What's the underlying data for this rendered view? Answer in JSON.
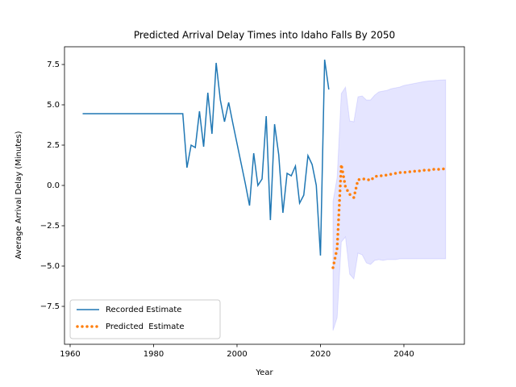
{
  "chart_data": {
    "type": "line",
    "title": "Predicted Arrival Delay Times into Idaho Falls By 2050",
    "x_label": "Year",
    "y_label": "Average Arrival Delay (Minutes)",
    "xlim": [
      1958.65,
      2054.5
    ],
    "ylim": [
      -9.85,
      8.6
    ],
    "xticks": [
      1960,
      1980,
      2000,
      2020,
      2040
    ],
    "yticks": [
      {
        "value": -7.5,
        "label": "−7.5"
      },
      {
        "value": -5,
        "label": "−5.0"
      },
      {
        "value": -2.5,
        "label": "−2.5"
      },
      {
        "value": 0,
        "label": "0.0"
      },
      2.5,
      {
        "value": 5,
        "label": "5.0"
      },
      7.5
    ],
    "legend": "lower left",
    "series": [
      {
        "name": "Recorded Estimate",
        "color": "#1f77b4",
        "style": "solid",
        "x": [
          1963,
          1964,
          1965,
          1966,
          1967,
          1968,
          1969,
          1970,
          1971,
          1972,
          1973,
          1974,
          1975,
          1976,
          1977,
          1978,
          1979,
          1980,
          1981,
          1982,
          1983,
          1984,
          1985,
          1986,
          1987,
          1988,
          1989,
          1990,
          1991,
          1992,
          1993,
          1994,
          1995,
          1996,
          1997,
          1998,
          1999,
          2000,
          2001,
          2002,
          2003,
          2004,
          2005,
          2006,
          2007,
          2008,
          2009,
          2010,
          2011,
          2012,
          2013,
          2014,
          2015,
          2016,
          2017,
          2018,
          2019,
          2020,
          2021,
          2022
        ],
        "values": [
          4.45,
          4.45,
          4.45,
          4.45,
          4.45,
          4.45,
          4.45,
          4.45,
          4.45,
          4.45,
          4.45,
          4.45,
          4.45,
          4.45,
          4.45,
          4.45,
          4.45,
          4.45,
          4.45,
          4.45,
          4.45,
          4.45,
          4.45,
          4.45,
          4.45,
          1.1,
          2.5,
          2.35,
          4.6,
          2.4,
          5.75,
          3.2,
          7.6,
          5.3,
          3.95,
          5.15,
          3.85,
          2.6,
          1.35,
          0.1,
          -1.25,
          2.0,
          0.0,
          0.4,
          4.3,
          -2.15,
          3.8,
          1.9,
          -1.7,
          0.75,
          0.6,
          1.2,
          -1.1,
          -0.6,
          1.85,
          1.3,
          0.0,
          -4.35,
          7.8,
          5.95
        ]
      },
      {
        "name": "Predicted  Estimate",
        "color": "#ff7f0e",
        "style": "dotted",
        "band_color": "#0000ff",
        "x": [
          2023,
          2024,
          2025,
          2026,
          2027,
          2028,
          2029,
          2030,
          2031,
          2032,
          2033,
          2034,
          2035,
          2036,
          2037,
          2038,
          2039,
          2040,
          2041,
          2042,
          2043,
          2044,
          2045,
          2046,
          2047,
          2048,
          2049,
          2050
        ],
        "values": [
          -5.1,
          -3.9,
          1.3,
          -0.1,
          -0.55,
          -0.75,
          0.35,
          0.4,
          0.4,
          0.3,
          0.55,
          0.6,
          0.6,
          0.65,
          0.7,
          0.75,
          0.8,
          0.8,
          0.85,
          0.85,
          0.9,
          0.9,
          0.95,
          0.95,
          1.0,
          1.0,
          1.0,
          1.05
        ],
        "lower": [
          -9.0,
          -8.2,
          -3.5,
          -3.2,
          -5.5,
          -5.8,
          -4.2,
          -4.3,
          -4.8,
          -4.9,
          -4.65,
          -4.6,
          -4.65,
          -4.6,
          -4.6,
          -4.6,
          -4.55,
          -4.55,
          -4.55,
          -4.55,
          -4.55,
          -4.55,
          -4.55,
          -4.55,
          -4.55,
          -4.55,
          -4.55,
          -4.55
        ],
        "upper": [
          -1.0,
          0.5,
          5.7,
          6.1,
          4.0,
          3.95,
          5.5,
          5.55,
          5.3,
          5.3,
          5.6,
          5.8,
          5.85,
          5.9,
          6.0,
          6.05,
          6.1,
          6.2,
          6.25,
          6.3,
          6.35,
          6.4,
          6.45,
          6.48,
          6.5,
          6.52,
          6.54,
          6.55
        ]
      }
    ]
  }
}
